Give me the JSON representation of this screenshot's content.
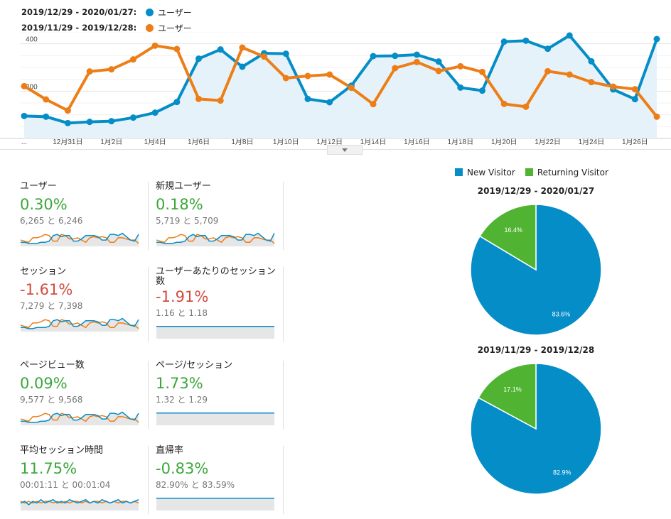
{
  "legend": {
    "current_range": "2019/12/29 - 2020/01/27:",
    "previous_range": "2019/11/29 - 2019/12/28:",
    "current_series_name": "ユーザー",
    "previous_series_name": "ユーザー",
    "current_color": "#058dc7",
    "previous_color": "#ed7e17"
  },
  "chart_data": [
    {
      "type": "line",
      "x_tick_labels": [
        "...",
        "12月31日",
        "1月2日",
        "1月4日",
        "1月6日",
        "1月8日",
        "1月10日",
        "1月12日",
        "1月14日",
        "1月16日",
        "1月18日",
        "1月20日",
        "1月22日",
        "1月24日",
        "1月26日"
      ],
      "y_ticks": [
        200,
        400
      ],
      "ylim": [
        0,
        450
      ],
      "grid": true,
      "series": [
        {
          "name": "ユーザー",
          "period": "2019/12/29 - 2020/01/27",
          "color": "#058dc7",
          "area": true,
          "values": [
            95,
            92,
            65,
            70,
            73,
            88,
            109,
            154,
            337,
            376,
            303,
            360,
            358,
            167,
            153,
            223,
            348,
            349,
            354,
            325,
            215,
            202,
            409,
            413,
            379,
            435,
            326,
            207,
            166,
            420
          ]
        },
        {
          "name": "ユーザー",
          "period": "2019/11/29 - 2019/12/28",
          "color": "#ed7e17",
          "area": false,
          "values": [
            221,
            165,
            118,
            283,
            292,
            334,
            392,
            378,
            167,
            160,
            384,
            346,
            255,
            264,
            270,
            214,
            145,
            297,
            323,
            285,
            305,
            281,
            146,
            134,
            284,
            270,
            238,
            219,
            208,
            92
          ]
        }
      ]
    },
    {
      "type": "pie",
      "title": "2019/12/29 - 2020/01/27",
      "categories": [
        "New Visitor",
        "Returning Visitor"
      ],
      "values": [
        83.6,
        16.4
      ],
      "labels": [
        "83.6%",
        "16.4%"
      ],
      "colors": [
        "#058dc7",
        "#50b432"
      ]
    },
    {
      "type": "pie",
      "title": "2019/11/29 - 2019/12/28",
      "categories": [
        "New Visitor",
        "Returning Visitor"
      ],
      "values": [
        82.9,
        17.1
      ],
      "labels": [
        "82.9%",
        "17.1%"
      ],
      "colors": [
        "#058dc7",
        "#50b432"
      ]
    }
  ],
  "metrics": [
    {
      "label": "ユーザー",
      "value": "0.30%",
      "trend": "pos",
      "compare": "6,265 と 6,246",
      "spark_a": [
        3,
        3,
        2,
        2,
        2,
        3,
        3,
        4,
        9,
        10,
        8,
        9,
        9,
        4,
        4,
        6,
        9,
        9,
        9,
        8,
        5,
        5,
        10,
        10,
        9,
        11,
        8,
        5,
        4,
        10
      ],
      "spark_b": [
        5,
        4,
        3,
        7,
        7,
        8,
        10,
        9,
        4,
        4,
        10,
        9,
        6,
        6,
        7,
        5,
        3,
        7,
        8,
        7,
        8,
        7,
        3,
        3,
        7,
        7,
        6,
        5,
        5,
        2
      ],
      "spark_max": 12
    },
    {
      "label": "新規ユーザー",
      "value": "0.18%",
      "trend": "pos",
      "compare": "5,719 と 5,709",
      "spark_a": [
        3,
        3,
        2,
        2,
        2,
        3,
        3,
        4,
        8,
        10,
        8,
        9,
        9,
        4,
        4,
        6,
        9,
        9,
        9,
        8,
        5,
        5,
        10,
        10,
        9,
        11,
        8,
        5,
        4,
        11
      ],
      "spark_b": [
        5,
        4,
        3,
        7,
        7,
        8,
        10,
        9,
        4,
        4,
        10,
        9,
        6,
        6,
        7,
        5,
        3,
        7,
        8,
        7,
        8,
        7,
        3,
        3,
        7,
        7,
        6,
        5,
        5,
        2
      ],
      "spark_max": 12
    },
    {
      "label": "セッション",
      "value": "-1.61%",
      "trend": "neg",
      "compare": "7,279 と 7,398",
      "spark_a": [
        3,
        3,
        2,
        2,
        3,
        3,
        3,
        4,
        9,
        10,
        8,
        9,
        9,
        4,
        4,
        6,
        9,
        9,
        9,
        8,
        5,
        5,
        10,
        10,
        9,
        11,
        8,
        5,
        4,
        10
      ],
      "spark_b": [
        5,
        4,
        3,
        7,
        7,
        8,
        10,
        9,
        4,
        4,
        10,
        9,
        6,
        6,
        7,
        5,
        3,
        7,
        8,
        7,
        8,
        7,
        3,
        3,
        7,
        7,
        6,
        5,
        5,
        2
      ],
      "spark_max": 12
    },
    {
      "label": "ユーザーあたりのセッション数",
      "value": "-1.91%",
      "trend": "neg",
      "compare": "1.16 と 1.18",
      "spark_a": [
        6,
        6,
        6,
        6,
        6,
        6,
        6,
        6,
        6,
        6,
        6,
        6,
        6,
        6,
        6,
        6,
        6,
        6,
        6,
        6,
        6,
        6,
        6,
        6,
        6,
        6,
        6,
        6,
        6,
        6
      ],
      "spark_b": [
        6,
        6,
        6,
        6,
        6,
        6,
        6,
        6,
        6,
        6,
        6,
        6,
        6,
        6,
        6,
        6,
        6,
        6,
        6,
        6,
        6,
        6,
        6,
        6,
        6,
        6,
        6,
        6,
        6,
        6
      ],
      "spark_max": 7
    },
    {
      "label": "ページビュー数",
      "value": "0.09%",
      "trend": "pos",
      "compare": "9,577 と 9,568",
      "spark_a": [
        3,
        3,
        2,
        2,
        2,
        3,
        3,
        4,
        9,
        10,
        8,
        9,
        9,
        4,
        4,
        6,
        9,
        9,
        9,
        8,
        5,
        5,
        10,
        10,
        9,
        11,
        8,
        5,
        4,
        10
      ],
      "spark_b": [
        5,
        4,
        3,
        7,
        7,
        8,
        10,
        9,
        4,
        4,
        10,
        9,
        6,
        6,
        7,
        5,
        3,
        7,
        8,
        7,
        8,
        7,
        3,
        3,
        7,
        7,
        6,
        5,
        5,
        2
      ],
      "spark_max": 12
    },
    {
      "label": "ページ/セッション",
      "value": "1.73%",
      "trend": "pos",
      "compare": "1.32 と 1.29",
      "spark_a": [
        6,
        6,
        6,
        6,
        6,
        6,
        6,
        6,
        6,
        6,
        6,
        6,
        6,
        6,
        6,
        6,
        6,
        6,
        6,
        6,
        6,
        6,
        6,
        6,
        6,
        6,
        6,
        6,
        6,
        6
      ],
      "spark_b": [
        6,
        6,
        6,
        6,
        6,
        6,
        6,
        6,
        6,
        6,
        6,
        6,
        6,
        6,
        6,
        6,
        6,
        6,
        6,
        6,
        6,
        6,
        6,
        6,
        6,
        6,
        6,
        6,
        6,
        6
      ],
      "spark_max": 7
    },
    {
      "label": "平均セッション時間",
      "value": "11.75%",
      "trend": "pos",
      "compare": "00:01:11 と 00:01:04",
      "spark_a": [
        4,
        5,
        3,
        5,
        4,
        6,
        4,
        5,
        6,
        4,
        5,
        4,
        6,
        5,
        4,
        5,
        6,
        4,
        5,
        4,
        6,
        5,
        4,
        5,
        6,
        4,
        5,
        4,
        5,
        6
      ],
      "spark_b": [
        5,
        4,
        5,
        4,
        5,
        4,
        5,
        5,
        4,
        5,
        4,
        5,
        4,
        5,
        5,
        4,
        5,
        4,
        5,
        5,
        4,
        5,
        4,
        5,
        4,
        5,
        5,
        4,
        5,
        4
      ],
      "spark_max": 8
    },
    {
      "label": "直帰率",
      "value": "-0.83%",
      "trend": "pos",
      "compare": "82.90% と 83.59%",
      "spark_a": [
        6,
        6,
        6,
        6,
        6,
        6,
        6,
        6,
        6,
        6,
        6,
        6,
        6,
        6,
        6,
        6,
        6,
        6,
        6,
        6,
        6,
        6,
        6,
        6,
        6,
        6,
        6,
        6,
        6,
        6
      ],
      "spark_b": [
        6,
        6,
        6,
        6,
        6,
        6,
        6,
        6,
        6,
        6,
        6,
        6,
        6,
        6,
        6,
        6,
        6,
        6,
        6,
        6,
        6,
        6,
        6,
        6,
        6,
        6,
        6,
        6,
        6,
        6
      ],
      "spark_max": 7
    }
  ],
  "pie_legend": [
    {
      "label": "New Visitor",
      "color": "#058dc7"
    },
    {
      "label": "Returning Visitor",
      "color": "#50b432"
    }
  ]
}
